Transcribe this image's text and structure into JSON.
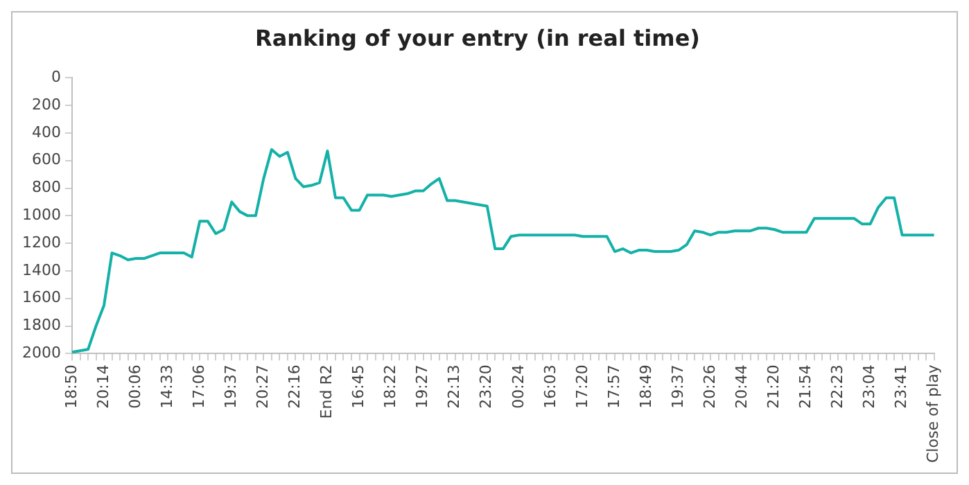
{
  "chart_data": {
    "type": "line",
    "title": "Ranking of your entry (in real time)",
    "categories": [
      "18:50",
      null,
      null,
      null,
      "20:14",
      null,
      null,
      null,
      "00:06",
      null,
      null,
      null,
      "14:33",
      null,
      null,
      null,
      "17:06",
      null,
      null,
      null,
      "19:37",
      null,
      null,
      null,
      "20:27",
      null,
      null,
      null,
      "22:16",
      null,
      null,
      null,
      "End R2",
      null,
      null,
      null,
      "16:45",
      null,
      null,
      null,
      "18:22",
      null,
      null,
      null,
      "19:27",
      null,
      null,
      null,
      "22:13",
      null,
      null,
      null,
      "23:20",
      null,
      null,
      null,
      "00:24",
      null,
      null,
      null,
      "16:03",
      null,
      null,
      null,
      "17:20",
      null,
      null,
      null,
      "17:57",
      null,
      null,
      null,
      "18:49",
      null,
      null,
      null,
      "19:37",
      null,
      null,
      null,
      "20:26",
      null,
      null,
      null,
      "20:44",
      null,
      null,
      null,
      "21:20",
      null,
      null,
      null,
      "21:54",
      null,
      null,
      null,
      "22:23",
      null,
      null,
      null,
      "23:04",
      null,
      null,
      null,
      "23:41",
      null,
      null,
      null,
      "Close of play"
    ],
    "series": [
      {
        "color": "#14b1a8",
        "values": [
          1990,
          1980,
          1970,
          1800,
          1650,
          1270,
          1290,
          1320,
          1310,
          1310,
          1290,
          1270,
          1270,
          1270,
          1270,
          1300,
          1040,
          1040,
          1130,
          1100,
          900,
          970,
          1000,
          1000,
          730,
          520,
          570,
          540,
          730,
          790,
          780,
          760,
          530,
          870,
          870,
          960,
          960,
          850,
          850,
          850,
          860,
          850,
          840,
          820,
          820,
          770,
          730,
          890,
          890,
          900,
          910,
          920,
          930,
          1240,
          1240,
          1150,
          1140,
          1140,
          1140,
          1140,
          1140,
          1140,
          1140,
          1140,
          1150,
          1150,
          1150,
          1150,
          1260,
          1240,
          1270,
          1250,
          1250,
          1260,
          1260,
          1260,
          1250,
          1210,
          1110,
          1120,
          1140,
          1120,
          1120,
          1110,
          1110,
          1110,
          1090,
          1090,
          1100,
          1120,
          1120,
          1120,
          1120,
          1020,
          1020,
          1020,
          1020,
          1020,
          1020,
          1060,
          1060,
          940,
          870,
          870,
          1140,
          1140,
          1140,
          1140,
          1140
        ]
      }
    ],
    "ylim": [
      2000,
      0
    ],
    "yticks": [
      0,
      200,
      400,
      600,
      800,
      1000,
      1200,
      1400,
      1600,
      1800,
      2000
    ],
    "grid": false,
    "legend": false,
    "marker": "none",
    "line_style": "solid"
  }
}
